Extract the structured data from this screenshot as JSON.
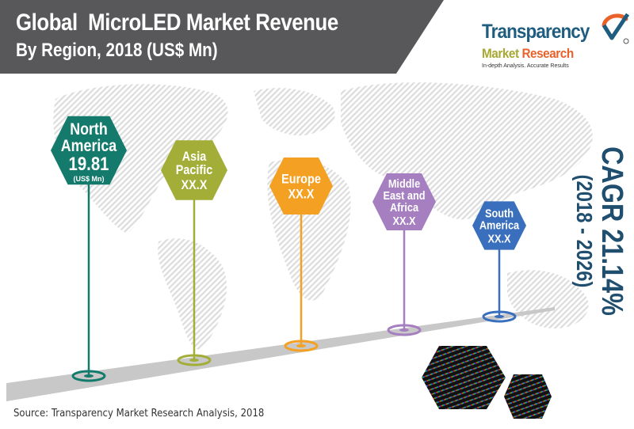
{
  "header": {
    "title_line1": "Global  MicroLED Market Revenue",
    "title_line2": "By Region, 2018 (US$ Mn)"
  },
  "logo": {
    "word1": "Transparency",
    "word2a": "Market",
    "word2b": "Research",
    "tagline": "In-depth Analysis. Accurate Results",
    "colors": {
      "primary": "#1f5d80",
      "market": "#a8a832",
      "research": "#e8622a"
    }
  },
  "cagr": {
    "label": "CAGR 21.14%",
    "period": "(2018 - 2026)"
  },
  "source": "Source: Transparency Market Research Analysis, 2018",
  "chart_data": {
    "type": "infographic-markers",
    "title": "Global MicroLED Market Revenue By Region, 2018 (US$ Mn)",
    "unit": "US$ Mn",
    "categories": [
      "North America",
      "Asia Pacific",
      "Europe",
      "Middle East and Africa",
      "South America"
    ],
    "series": [
      {
        "name": "Revenue 2018",
        "values": [
          19.81,
          null,
          null,
          null,
          null
        ],
        "display": [
          "19.81",
          "XX.X",
          "XX.X",
          "XX.X",
          "XX.X"
        ]
      }
    ],
    "markers": [
      {
        "label_lines": [
          "North",
          "America"
        ],
        "value": "19.81",
        "unit_note": "(US$ Mn)",
        "color": "#137a6c"
      },
      {
        "label_lines": [
          "Asia",
          "Pacific"
        ],
        "value": "XX.X",
        "unit_note": "",
        "color": "#a3ae38"
      },
      {
        "label_lines": [
          "Europe"
        ],
        "value": "XX.X",
        "unit_note": "",
        "color": "#f4a023"
      },
      {
        "label_lines": [
          "Middle",
          "East and",
          "Africa"
        ],
        "value": "XX.X",
        "unit_note": "",
        "color": "#a67fc0"
      },
      {
        "label_lines": [
          "South",
          "America"
        ],
        "value": "XX.X",
        "unit_note": "",
        "color": "#3a6fbd"
      }
    ],
    "annotations": [
      "CAGR 21.14% (2018 - 2026)"
    ]
  }
}
